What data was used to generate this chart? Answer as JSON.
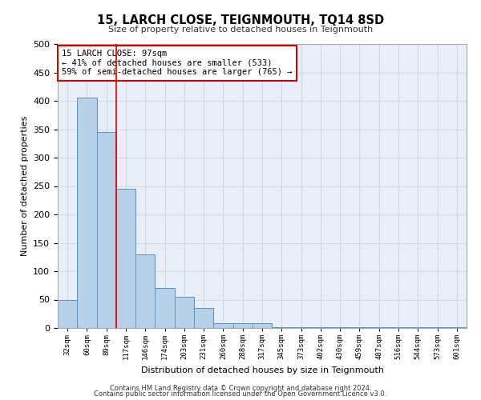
{
  "title": "15, LARCH CLOSE, TEIGNMOUTH, TQ14 8SD",
  "subtitle": "Size of property relative to detached houses in Teignmouth",
  "xlabel": "Distribution of detached houses by size in Teignmouth",
  "ylabel": "Number of detached properties",
  "bin_labels": [
    "32sqm",
    "60sqm",
    "89sqm",
    "117sqm",
    "146sqm",
    "174sqm",
    "203sqm",
    "231sqm",
    "260sqm",
    "288sqm",
    "317sqm",
    "345sqm",
    "373sqm",
    "402sqm",
    "430sqm",
    "459sqm",
    "487sqm",
    "516sqm",
    "544sqm",
    "573sqm",
    "601sqm"
  ],
  "bin_values": [
    50,
    405,
    345,
    245,
    130,
    70,
    55,
    35,
    8,
    8,
    8,
    2,
    1,
    1,
    1,
    1,
    1,
    1,
    1,
    1,
    1
  ],
  "bar_color": "#b8d0e8",
  "bar_edge_color": "#5a8fc0",
  "bg_color": "#e8eff8",
  "grid_color": "#d0d8e8",
  "vline_x_index": 2.5,
  "vline_color": "#cc0000",
  "annotation_text": "15 LARCH CLOSE: 97sqm\n← 41% of detached houses are smaller (533)\n59% of semi-detached houses are larger (765) →",
  "annotation_box_color": "#cc0000",
  "footnote1": "Contains HM Land Registry data © Crown copyright and database right 2024.",
  "footnote2": "Contains public sector information licensed under the Open Government Licence v3.0.",
  "ylim": [
    0,
    500
  ],
  "yticks": [
    0,
    50,
    100,
    150,
    200,
    250,
    300,
    350,
    400,
    450,
    500
  ]
}
